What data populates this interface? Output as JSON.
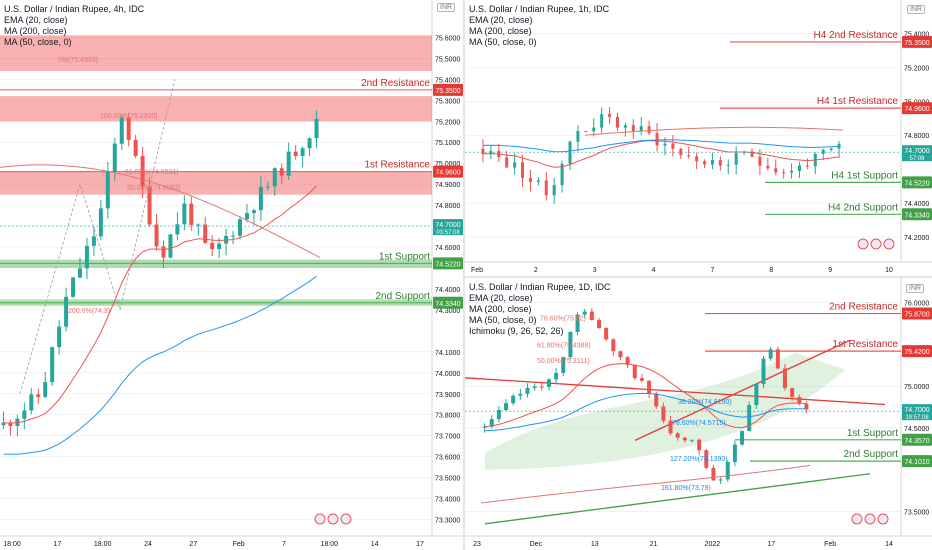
{
  "panels": [
    {
      "id": "h4",
      "title": "U.S. Dollar / Indian Rupee, 4h, IDC",
      "indicators": [
        "EMA (20, close)",
        "MA (200, close)",
        "MA (50, close, 0)"
      ],
      "currency": "INR",
      "price_labels": [
        {
          "text": "75.6000",
          "price": 75.6
        },
        {
          "text": "75.5000",
          "price": 75.5
        },
        {
          "text": "75.4000",
          "price": 75.4
        },
        {
          "text": "75.3000",
          "price": 75.3
        },
        {
          "text": "75.2000",
          "price": 75.2
        },
        {
          "text": "75.1000",
          "price": 75.1
        },
        {
          "text": "75.0000",
          "price": 75.0
        },
        {
          "text": "74.9000",
          "price": 74.9
        },
        {
          "text": "74.8000",
          "price": 74.8
        },
        {
          "text": "74.6000",
          "price": 74.6
        },
        {
          "text": "74.4000",
          "price": 74.4
        },
        {
          "text": "74.3000",
          "price": 74.3
        },
        {
          "text": "74.1000",
          "price": 74.1
        },
        {
          "text": "74.0000",
          "price": 74.0
        },
        {
          "text": "73.9000",
          "price": 73.9
        },
        {
          "text": "73.8000",
          "price": 73.8
        },
        {
          "text": "73.7000",
          "price": 73.7
        },
        {
          "text": "73.6000",
          "price": 73.6
        },
        {
          "text": "73.5000",
          "price": 73.5
        },
        {
          "text": "73.4000",
          "price": 73.4
        },
        {
          "text": "73.3000",
          "price": 73.3
        }
      ],
      "time_labels": [
        "18:00",
        "17",
        "18:00",
        "24",
        "27",
        "Feb",
        "7",
        "18:00",
        "14",
        "17"
      ],
      "zones": [
        {
          "top": 75.61,
          "bottom": 75.44,
          "label": "",
          "color": "#ef5350"
        },
        {
          "top": 75.32,
          "bottom": 75.2,
          "label": "2nd Resistance",
          "tag": "75.3500",
          "line": 75.35,
          "color": "#ef5350"
        },
        {
          "top": 74.96,
          "bottom": 74.85,
          "label": "1st Resistance",
          "tag": "74.9600",
          "line": 74.96,
          "color": "#ef5350"
        },
        {
          "top": 74.54,
          "bottom": 74.5,
          "label": "1st Support",
          "tag": "74.5220",
          "line": 74.522,
          "color": "#4caf50"
        },
        {
          "top": 74.35,
          "bottom": 74.32,
          "label": "2nd Support",
          "tag": "74.3340",
          "line": 74.334,
          "color": "#4caf50"
        }
      ],
      "fib_labels": [
        "100.00%(75.2320)",
        "61.80%(74.9631)",
        "50.00%(74.8863)",
        "200.0%(74.3)",
        "0%(75.4983)"
      ],
      "current": {
        "price": "74.7000",
        "countdown": "03:57:08"
      }
    },
    {
      "id": "h1",
      "title": "U.S. Dollar / Indian Rupee, 1h, IDC",
      "indicators": [
        "EMA (20, close)",
        "MA (200, close)",
        "MA (50, close, 0)"
      ],
      "currency": "INR",
      "price_labels": [
        {
          "text": "75.4000",
          "price": 75.4
        },
        {
          "text": "75.2000",
          "price": 75.2
        },
        {
          "text": "75.0000",
          "price": 75.0
        },
        {
          "text": "74.8000",
          "price": 74.8
        },
        {
          "text": "74.4000",
          "price": 74.4
        },
        {
          "text": "74.2000",
          "price": 74.2
        }
      ],
      "time_labels": [
        "Feb",
        "2",
        "3",
        "4",
        "7",
        "8",
        "9",
        "10"
      ],
      "levels": [
        {
          "label": "H4 2nd Resistance",
          "tag": "75.3500",
          "price": 75.35,
          "color": "#ef5350"
        },
        {
          "label": "H4 1st Resistance",
          "tag": "74.9600",
          "price": 74.96,
          "color": "#ef5350"
        },
        {
          "label": "H4 1st Support",
          "tag": "74.5220",
          "price": 74.522,
          "color": "#4caf50"
        },
        {
          "label": "H4 2nd Support",
          "tag": "74.3340",
          "price": 74.334,
          "color": "#4caf50"
        }
      ],
      "current": {
        "price": "74.7000",
        "countdown": "57:08"
      }
    },
    {
      "id": "d1",
      "title": "U.S. Dollar / Indian Rupee, 1D, IDC",
      "indicators": [
        "EMA (20, close)",
        "MA (200, close)",
        "MA (50, close, 0)",
        "Ichimoku (9, 26, 52, 26)"
      ],
      "currency": "INR",
      "price_labels": [
        {
          "text": "76.0000",
          "price": 76.0
        },
        {
          "text": "75.0000",
          "price": 75.0
        },
        {
          "text": "74.5000",
          "price": 74.5
        },
        {
          "text": "73.5000",
          "price": 73.5
        }
      ],
      "time_labels": [
        "23",
        "Dec",
        "13",
        "21",
        "2022",
        "17",
        "Feb",
        "14"
      ],
      "levels": [
        {
          "label": "2nd Resistance",
          "tag": "75.8700",
          "price": 75.87,
          "color": "#ef5350"
        },
        {
          "label": "1st Resistance",
          "tag": "75.4200",
          "price": 75.42,
          "color": "#ef5350"
        },
        {
          "label": "1st Support",
          "tag": "74.3570",
          "price": 74.357,
          "color": "#4caf50"
        },
        {
          "label": "2nd Support",
          "tag": "74.1010",
          "price": 74.101,
          "color": "#4caf50"
        }
      ],
      "fib_labels": [
        "78.60%(75.82)",
        "61.80%(75.4988)",
        "50.00%(75.3111)",
        "38.20%(74.8190)",
        "78.60%(74.5715)",
        "127.20%(74.1390)",
        "161.80%(73.79)"
      ],
      "current": {
        "price": "74.7000",
        "countdown": "19:57:08"
      }
    }
  ],
  "colors": {
    "up": "#26a69a",
    "down": "#ef5350",
    "ema": "#ef5350",
    "ma50": "#2196f3",
    "ma200": "#e57373",
    "resistance_zone": "#f8a5a5",
    "support_zone": "#a5d6a7",
    "trend_red": "#e53935",
    "trend_green": "#43a047",
    "fib": "#9e9e9e"
  },
  "chart_data": [
    {
      "type": "candlestick",
      "title": "U.S. Dollar / Indian Rupee, 4h, IDC",
      "ylim": [
        73.25,
        75.75
      ],
      "levels": {
        "2nd Resistance": 75.35,
        "1st Resistance": 74.96,
        "1st Support": 74.522,
        "2nd Support": 74.334
      },
      "last_price": 74.7
    },
    {
      "type": "candlestick",
      "title": "U.S. Dollar / Indian Rupee, 1h, IDC",
      "ylim": [
        74.1,
        75.55
      ],
      "levels": {
        "H4 2nd Resistance": 75.35,
        "H4 1st Resistance": 74.96,
        "H4 1st Support": 74.522,
        "H4 2nd Support": 74.334
      },
      "last_price": 74.7
    },
    {
      "type": "candlestick",
      "title": "U.S. Dollar / Indian Rupee, 1D, IDC",
      "ylim": [
        73.3,
        76.2
      ],
      "levels": {
        "2nd Resistance": 75.87,
        "1st Resistance": 75.42,
        "1st Support": 74.357,
        "2nd Support": 74.101
      },
      "last_price": 74.7
    }
  ]
}
